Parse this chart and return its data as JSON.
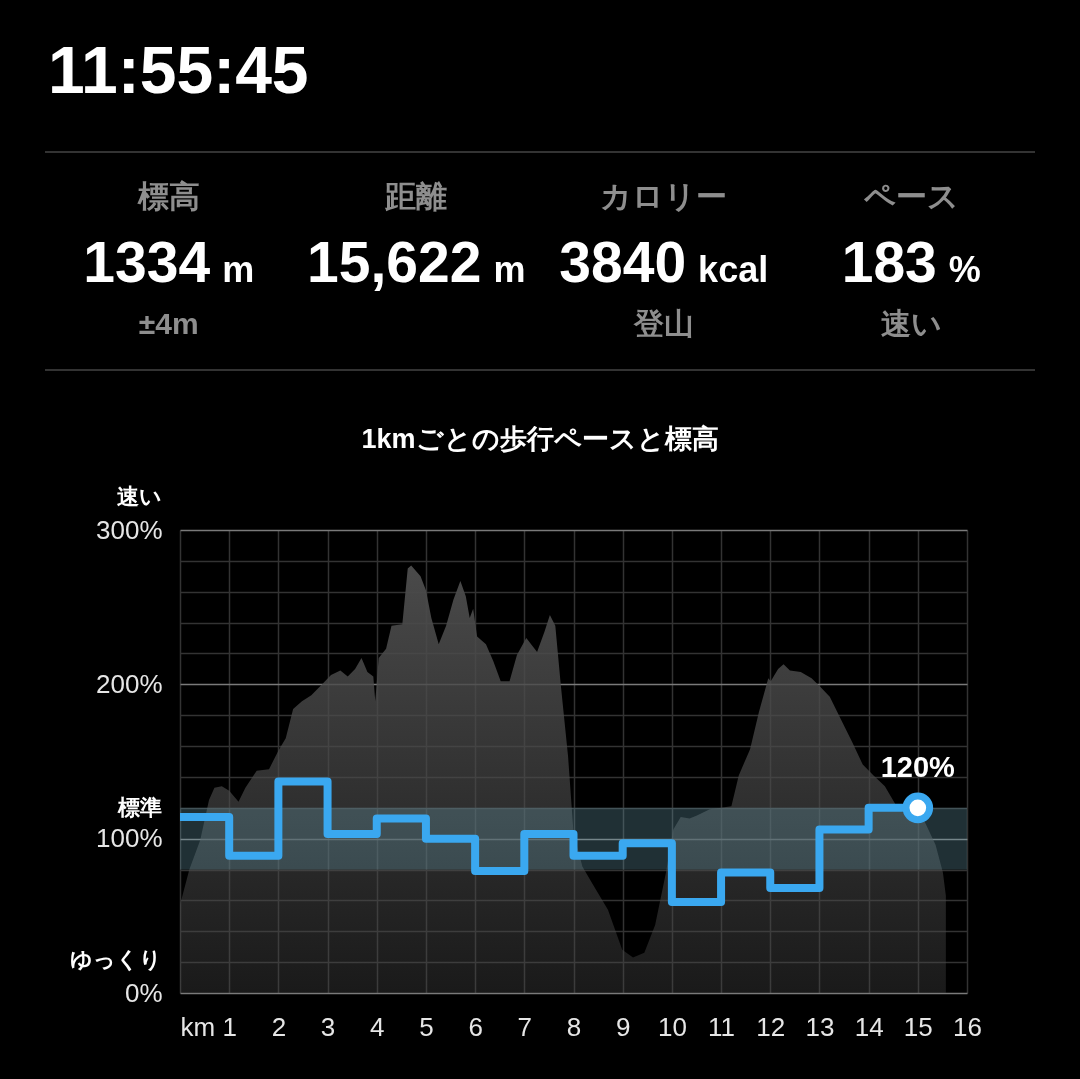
{
  "chart_data": [
    {
      "type": "other",
      "title": "11:55:45",
      "categories": [
        "標高",
        "距離",
        "カロリー",
        "ペース"
      ],
      "annotations": [
        {
          "text": "1334 m",
          "x": "標高"
        },
        {
          "text": "±4m",
          "x": "標高"
        },
        {
          "text": "15,622 m",
          "x": "距離"
        },
        {
          "text": "3840 kcal",
          "x": "カロリー"
        },
        {
          "text": "登山",
          "x": "カロリー"
        },
        {
          "text": "183 %",
          "x": "ペース"
        },
        {
          "text": "速い",
          "x": "ペース"
        }
      ]
    },
    {
      "type": "step",
      "title": "1kmごとの歩行ペースと標高",
      "xlabel": "km",
      "xlim": [
        0,
        16
      ],
      "xticks": [
        {
          "value": 0,
          "label": null
        },
        1,
        2,
        3,
        4,
        5,
        6,
        7,
        8,
        9,
        10,
        11,
        12,
        13,
        14,
        15,
        16
      ],
      "ylim": [
        0,
        300
      ],
      "yticks": [
        {
          "value": 0,
          "label": "0%"
        },
        {
          "value": 20,
          "label": null
        },
        {
          "value": 40,
          "label": null
        },
        {
          "value": 60,
          "label": null
        },
        {
          "value": 80,
          "label": null
        },
        {
          "value": 100,
          "label": "100%"
        },
        {
          "value": 120,
          "label": null
        },
        {
          "value": 140,
          "label": null
        },
        {
          "value": 160,
          "label": null
        },
        {
          "value": 180,
          "label": null
        },
        {
          "value": 200,
          "label": "200%"
        },
        {
          "value": 220,
          "label": null
        },
        {
          "value": 240,
          "label": null
        },
        {
          "value": 260,
          "label": null
        },
        {
          "value": 280,
          "label": null
        },
        {
          "value": 300,
          "label": "300%"
        }
      ],
      "grid": true,
      "annotations": [
        "速い",
        "ゆっくり"
      ],
      "bands": [
        {
          "axis": "y",
          "from": 80,
          "to": 120,
          "label": "標準",
          "color": "#6a9fb0"
        }
      ],
      "series": [
        {
          "type": "area",
          "color": "#4a4a4a",
          "x": [
            0,
            0.19,
            0.41,
            0.59,
            0.7,
            0.85,
            1.0,
            1.19,
            1.33,
            1.56,
            1.81,
            2.0,
            2.15,
            2.3,
            2.48,
            2.67,
            2.89,
            3.07,
            3.26,
            3.41,
            3.56,
            3.69,
            3.81,
            3.93,
            3.97,
            4.04,
            4.19,
            4.3,
            4.52,
            4.63,
            4.7,
            4.89,
            5.0,
            5.11,
            5.26,
            5.41,
            5.56,
            5.7,
            5.81,
            5.89,
            5.96,
            6.04,
            6.22,
            6.37,
            6.52,
            6.7,
            6.85,
            7.04,
            7.26,
            7.41,
            7.52,
            7.63,
            7.74,
            7.89,
            8.0,
            8.18,
            8.4,
            8.7,
            8.99,
            9.21,
            9.44,
            9.66,
            9.88,
            10.03,
            10.18,
            10.36,
            10.51,
            10.77,
            11.0,
            11.21,
            11.36,
            11.59,
            11.77,
            11.96,
            12.01,
            12.16,
            12.27,
            12.4,
            12.62,
            12.84,
            13.03,
            13.21,
            13.44,
            13.66,
            13.88,
            14.1,
            14.33,
            14.55,
            14.77,
            15.14,
            15.36,
            15.51,
            15.57
          ],
          "values": [
            57,
            80,
            99,
            125,
            133,
            134,
            131,
            124,
            133,
            144,
            145,
            157,
            165,
            184,
            189,
            193,
            200,
            206,
            209,
            205,
            210,
            217,
            208,
            205,
            189,
            217,
            223,
            238,
            239,
            275,
            277,
            270,
            261,
            243,
            226,
            238,
            255,
            267,
            257,
            243,
            249,
            231,
            226,
            215,
            202,
            202,
            219,
            230,
            221,
            234,
            245,
            238,
            200,
            153,
            104,
            82,
            70,
            54,
            28,
            23,
            26,
            44,
            78,
            106,
            114,
            113,
            115,
            119,
            120,
            121,
            141,
            158,
            182,
            204,
            202,
            210,
            213,
            209,
            208,
            204,
            198,
            192,
            177,
            163,
            148,
            141,
            134,
            122,
            115,
            111,
            96,
            78,
            63
          ]
        },
        {
          "color": "#3aa8f0",
          "x": [
            0,
            1,
            2,
            3,
            4,
            5,
            6,
            7,
            8,
            9,
            10,
            11,
            12,
            13,
            14,
            15
          ],
          "values": [
            114,
            89,
            137,
            103,
            113,
            100,
            79,
            103,
            89,
            97,
            59,
            78,
            68,
            106,
            120,
            120
          ]
        },
        {
          "type": "scatter",
          "color": "#ffffff",
          "marker": "circle",
          "x": [
            15
          ],
          "values": [
            120
          ],
          "value_labels": [
            "120%"
          ]
        }
      ]
    }
  ]
}
